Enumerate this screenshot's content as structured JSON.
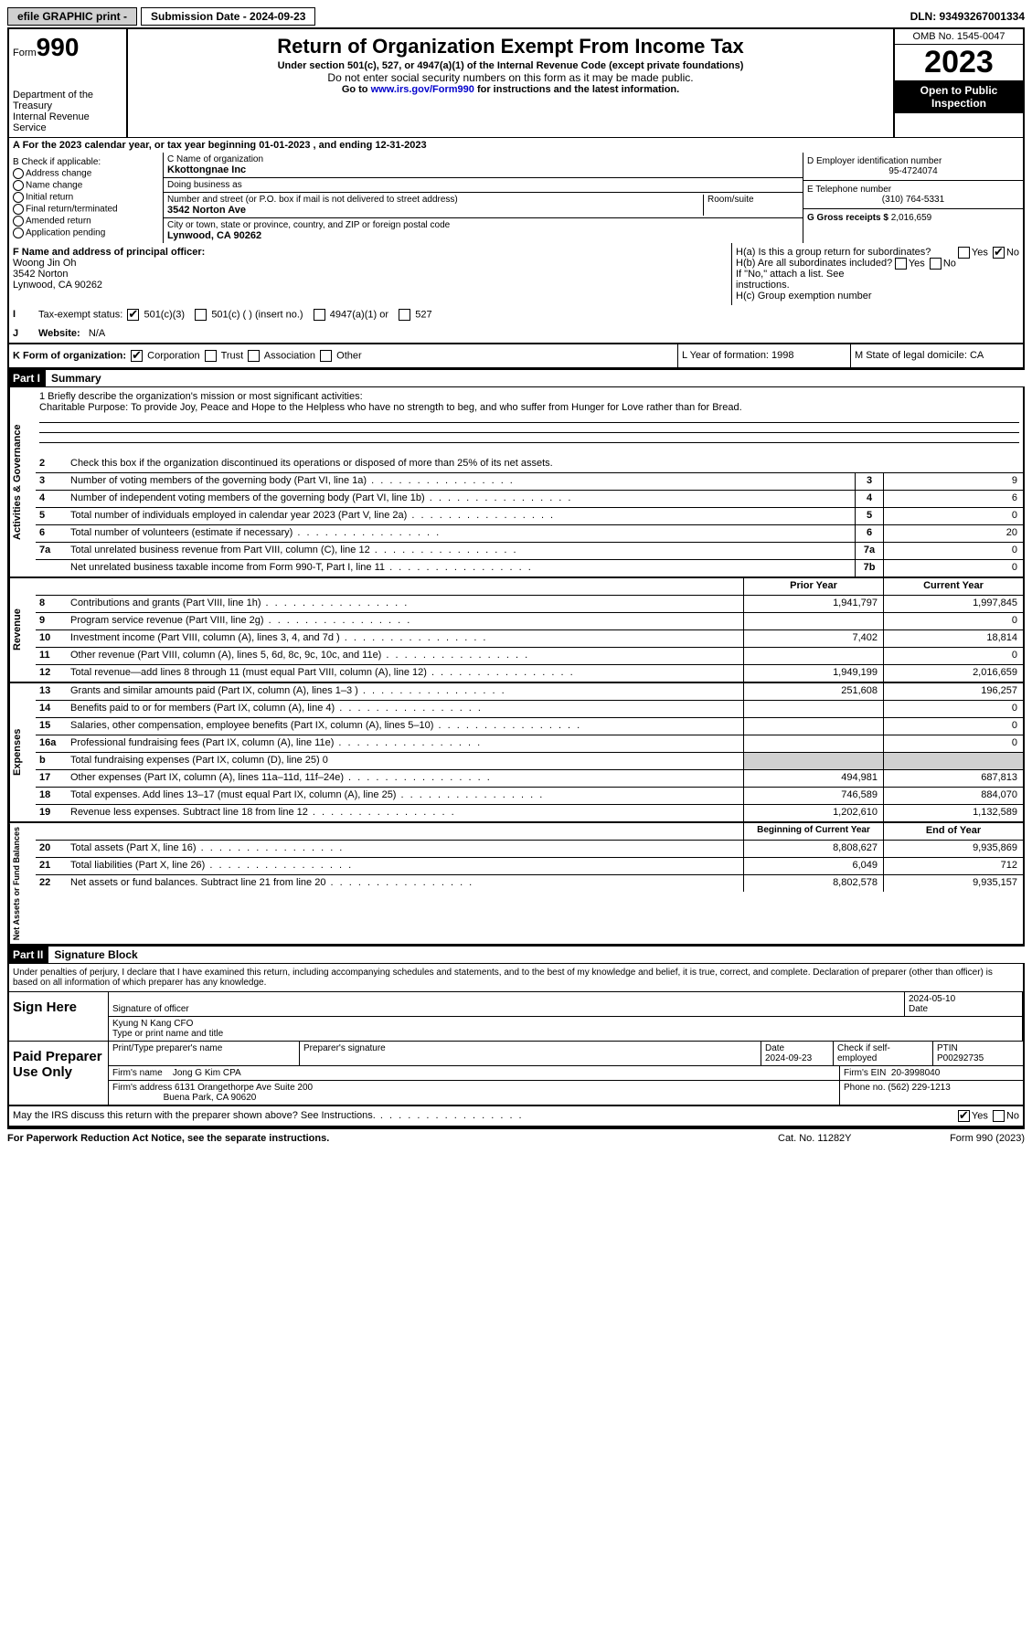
{
  "topbar": {
    "efile": "efile GRAPHIC print -",
    "submission": "Submission Date - 2024-09-23",
    "dln": "DLN: 93493267001334"
  },
  "header": {
    "form_word": "Form",
    "form_num": "990",
    "dept": "Department of the Treasury",
    "irs": "Internal Revenue Service",
    "title": "Return of Organization Exempt From Income Tax",
    "sub1": "Under section 501(c), 527, or 4947(a)(1) of the Internal Revenue Code (except private foundations)",
    "sub2": "Do not enter social security numbers on this form as it may be made public.",
    "sub3_pre": "Go to ",
    "sub3_link": "www.irs.gov/Form990",
    "sub3_post": " for instructions and the latest information.",
    "omb": "OMB No. 1545-0047",
    "year": "2023",
    "inspect": "Open to Public Inspection"
  },
  "rowA": "A For the 2023 calendar year, or tax year beginning 01-01-2023    , and ending 12-31-2023",
  "boxB": {
    "label": "B Check if applicable:",
    "opts": [
      "Address change",
      "Name change",
      "Initial return",
      "Final return/terminated",
      "Amended return",
      "Application pending"
    ]
  },
  "boxC": {
    "name_lbl": "C Name of organization",
    "name": "Kkottongnae Inc",
    "dba_lbl": "Doing business as",
    "addr_lbl": "Number and street (or P.O. box if mail is not delivered to street address)",
    "room_lbl": "Room/suite",
    "addr": "3542 Norton Ave",
    "city_lbl": "City or town, state or province, country, and ZIP or foreign postal code",
    "city": "Lynwood, CA  90262"
  },
  "boxD": {
    "lbl": "D Employer identification number",
    "val": "95-4724074"
  },
  "boxE": {
    "lbl": "E Telephone number",
    "val": "(310) 764-5331"
  },
  "boxG": {
    "lbl": "G Gross receipts $",
    "val": "2,016,659"
  },
  "rowF": {
    "lbl": "F  Name and address of principal officer:",
    "name": "Woong Jin Oh",
    "addr": "3542 Norton",
    "city": "Lynwood, CA  90262"
  },
  "rowH": {
    "ha": "H(a)  Is this a group return for subordinates?",
    "hb": "H(b)  Are all subordinates included?",
    "hb_note": "If \"No,\" attach a list. See instructions.",
    "hc": "H(c)  Group exemption number"
  },
  "rowI": {
    "lbl": "Tax-exempt status:",
    "o1": "501(c)(3)",
    "o2": "501(c) (  ) (insert no.)",
    "o3": "4947(a)(1) or",
    "o4": "527"
  },
  "rowJ": {
    "lbl": "Website:",
    "val": "N/A"
  },
  "rowK": {
    "lbl": "K Form of organization:",
    "o1": "Corporation",
    "o2": "Trust",
    "o3": "Association",
    "o4": "Other",
    "L": "L Year of formation: 1998",
    "M": "M State of legal domicile: CA"
  },
  "part1": {
    "num": "Part I",
    "title": "Summary"
  },
  "mission": {
    "l1": "1   Briefly describe the organization's mission or most significant activities:",
    "text": "Charitable Purpose: To provide Joy, Peace and Hope to the Helpless who have no strength to beg, and who suffer from Hunger for Love rather than for Bread."
  },
  "vtabs": {
    "ag": "Activities & Governance",
    "rev": "Revenue",
    "exp": "Expenses",
    "na": "Net Assets or Fund Balances"
  },
  "lines_ag": [
    {
      "n": "2",
      "d": "Check this box      if the organization discontinued its operations or disposed of more than 25% of its net assets."
    },
    {
      "n": "3",
      "d": "Number of voting members of the governing body (Part VI, line 1a)",
      "k": "3",
      "v": "9"
    },
    {
      "n": "4",
      "d": "Number of independent voting members of the governing body (Part VI, line 1b)",
      "k": "4",
      "v": "6"
    },
    {
      "n": "5",
      "d": "Total number of individuals employed in calendar year 2023 (Part V, line 2a)",
      "k": "5",
      "v": "0"
    },
    {
      "n": "6",
      "d": "Total number of volunteers (estimate if necessary)",
      "k": "6",
      "v": "20"
    },
    {
      "n": "7a",
      "d": "Total unrelated business revenue from Part VIII, column (C), line 12",
      "k": "7a",
      "v": "0"
    },
    {
      "n": "",
      "d": "Net unrelated business taxable income from Form 990-T, Part I, line 11",
      "k": "7b",
      "v": "0"
    }
  ],
  "col_hdrs": {
    "prior": "Prior Year",
    "curr": "Current Year",
    "beg": "Beginning of Current Year",
    "end": "End of Year"
  },
  "lines_rev": [
    {
      "n": "8",
      "d": "Contributions and grants (Part VIII, line 1h)",
      "p": "1,941,797",
      "c": "1,997,845"
    },
    {
      "n": "9",
      "d": "Program service revenue (Part VIII, line 2g)",
      "p": "",
      "c": "0"
    },
    {
      "n": "10",
      "d": "Investment income (Part VIII, column (A), lines 3, 4, and 7d )",
      "p": "7,402",
      "c": "18,814"
    },
    {
      "n": "11",
      "d": "Other revenue (Part VIII, column (A), lines 5, 6d, 8c, 9c, 10c, and 11e)",
      "p": "",
      "c": "0"
    },
    {
      "n": "12",
      "d": "Total revenue—add lines 8 through 11 (must equal Part VIII, column (A), line 12)",
      "p": "1,949,199",
      "c": "2,016,659"
    }
  ],
  "lines_exp": [
    {
      "n": "13",
      "d": "Grants and similar amounts paid (Part IX, column (A), lines 1–3 )",
      "p": "251,608",
      "c": "196,257"
    },
    {
      "n": "14",
      "d": "Benefits paid to or for members (Part IX, column (A), line 4)",
      "p": "",
      "c": "0"
    },
    {
      "n": "15",
      "d": "Salaries, other compensation, employee benefits (Part IX, column (A), lines 5–10)",
      "p": "",
      "c": "0"
    },
    {
      "n": "16a",
      "d": "Professional fundraising fees (Part IX, column (A), line 11e)",
      "p": "",
      "c": "0"
    },
    {
      "n": "b",
      "d": "Total fundraising expenses (Part IX, column (D), line 25) 0",
      "shade": true
    },
    {
      "n": "17",
      "d": "Other expenses (Part IX, column (A), lines 11a–11d, 11f–24e)",
      "p": "494,981",
      "c": "687,813"
    },
    {
      "n": "18",
      "d": "Total expenses. Add lines 13–17 (must equal Part IX, column (A), line 25)",
      "p": "746,589",
      "c": "884,070"
    },
    {
      "n": "19",
      "d": "Revenue less expenses. Subtract line 18 from line 12",
      "p": "1,202,610",
      "c": "1,132,589"
    }
  ],
  "lines_na": [
    {
      "n": "20",
      "d": "Total assets (Part X, line 16)",
      "p": "8,808,627",
      "c": "9,935,869"
    },
    {
      "n": "21",
      "d": "Total liabilities (Part X, line 26)",
      "p": "6,049",
      "c": "712"
    },
    {
      "n": "22",
      "d": "Net assets or fund balances. Subtract line 21 from line 20",
      "p": "8,802,578",
      "c": "9,935,157"
    }
  ],
  "part2": {
    "num": "Part II",
    "title": "Signature Block"
  },
  "sig": {
    "decl": "Under penalties of perjury, I declare that I have examined this return, including accompanying schedules and statements, and to the best of my knowledge and belief, it is true, correct, and complete. Declaration of preparer (other than officer) is based on all information of which preparer has any knowledge.",
    "sign_here": "Sign Here",
    "sig_officer": "Signature of officer",
    "date_lbl": "Date",
    "date1": "2024-05-10",
    "name_title": "Kyung N Kang  CFO",
    "type_lbl": "Type or print name and title",
    "paid": "Paid Preparer Use Only",
    "prep_name_lbl": "Print/Type preparer's name",
    "prep_sig_lbl": "Preparer's signature",
    "date2": "2024-09-23",
    "self_emp": "Check       if self-employed",
    "ptin_lbl": "PTIN",
    "ptin": "P00292735",
    "firm_name_lbl": "Firm's name",
    "firm_name": "Jong G Kim CPA",
    "firm_ein_lbl": "Firm's EIN",
    "firm_ein": "20-3998040",
    "firm_addr_lbl": "Firm's address",
    "firm_addr": "6131 Orangethorpe Ave Suite 200",
    "firm_city": "Buena Park, CA  90620",
    "phone_lbl": "Phone no.",
    "phone": "(562) 229-1213",
    "discuss": "May the IRS discuss this return with the preparer shown above? See Instructions."
  },
  "footer": {
    "pra": "For Paperwork Reduction Act Notice, see the separate instructions.",
    "cat": "Cat. No. 11282Y",
    "form": "Form 990 (2023)"
  }
}
